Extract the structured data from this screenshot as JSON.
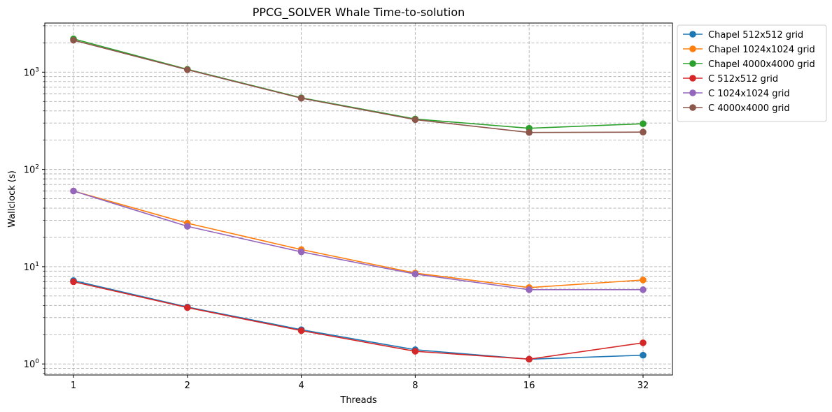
{
  "chart_data": {
    "type": "line",
    "title": "PPCG_SOLVER Whale Time-to-solution",
    "xlabel": "Threads",
    "ylabel": "Wallclock (s)",
    "x": [
      1,
      2,
      4,
      8,
      16,
      32
    ],
    "x_tick_labels": [
      "1",
      "2",
      "4",
      "8",
      "16",
      "32"
    ],
    "x_scale": "log2",
    "y_scale": "log",
    "ylim": [
      0.77,
      3200
    ],
    "y_tick_labels": [
      {
        "value": 1,
        "base": "10",
        "exp": "0"
      },
      {
        "value": 10,
        "base": "10",
        "exp": "1"
      },
      {
        "value": 100,
        "base": "10",
        "exp": "2"
      },
      {
        "value": 1000,
        "base": "10",
        "exp": "3"
      }
    ],
    "grid": "major-and-minor, dashed",
    "legend_position": "outside-top-right",
    "series": [
      {
        "name": "Chapel 512x512 grid",
        "color": "#1f77b4",
        "values": [
          7.2,
          3.85,
          2.25,
          1.4,
          1.12,
          1.23
        ]
      },
      {
        "name": "Chapel 1024x1024 grid",
        "color": "#ff7f0e",
        "values": [
          60,
          28,
          15,
          8.6,
          6.1,
          7.3
        ]
      },
      {
        "name": "Chapel 4000x4000 grid",
        "color": "#2ca02c",
        "values": [
          2200,
          1070,
          545,
          330,
          265,
          295
        ]
      },
      {
        "name": "C 512x512 grid",
        "color": "#d62728",
        "values": [
          7.0,
          3.8,
          2.2,
          1.35,
          1.12,
          1.65
        ]
      },
      {
        "name": "C 1024x1024 grid",
        "color": "#9467bd",
        "values": [
          60,
          26,
          14.2,
          8.4,
          5.8,
          5.8
        ]
      },
      {
        "name": "C 4000x4000 grid",
        "color": "#8c564b",
        "values": [
          2130,
          1060,
          540,
          325,
          240,
          242
        ]
      }
    ]
  }
}
